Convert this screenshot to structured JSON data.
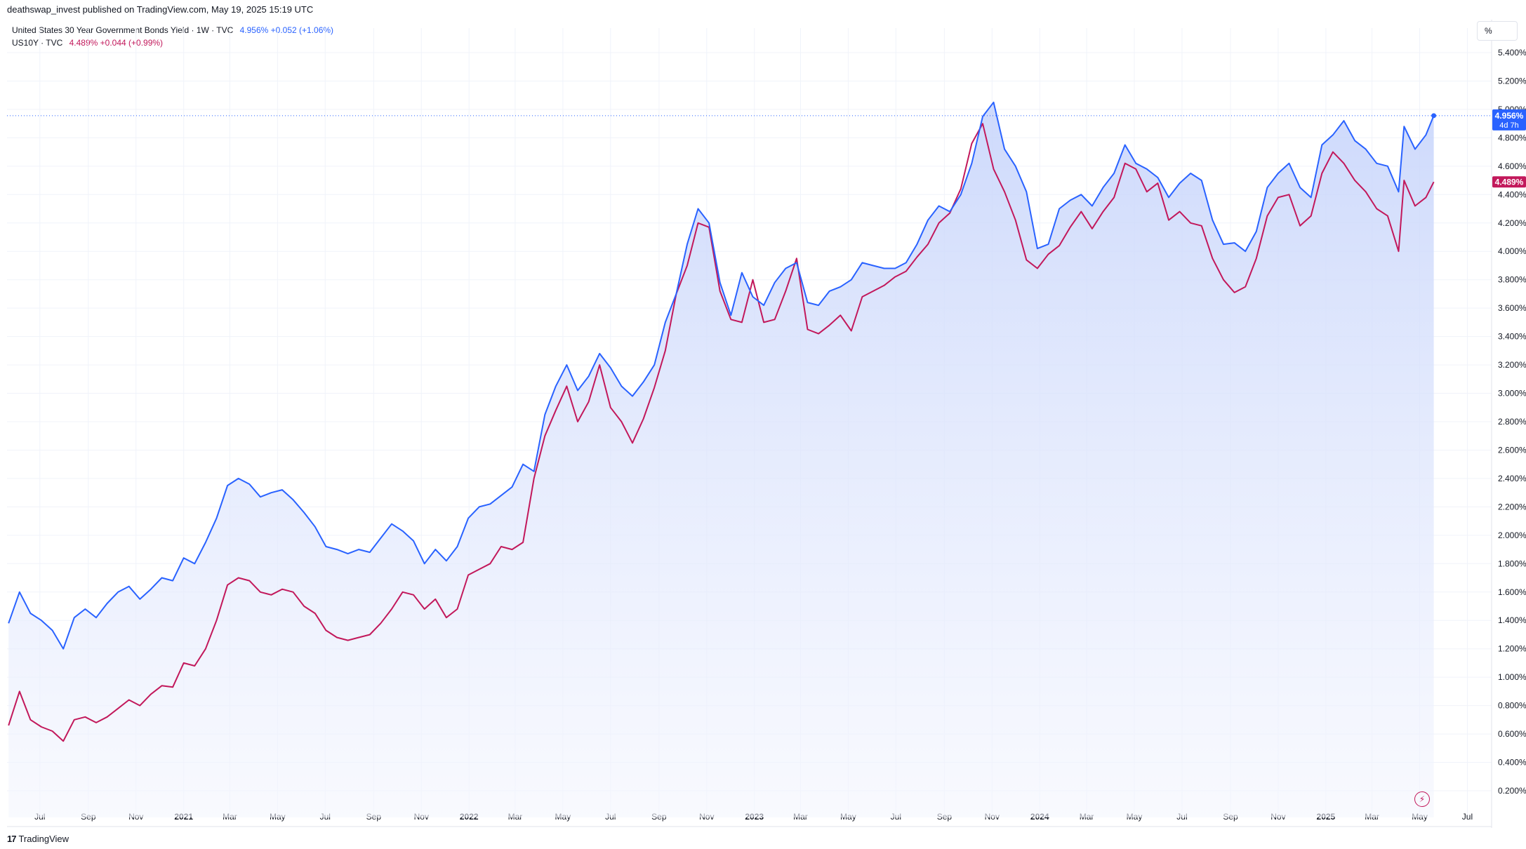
{
  "header": {
    "published": "deathswap_invest published on TradingView.com, May 19, 2025 15:19 UTC"
  },
  "legend": {
    "series1_name": "United States 30 Year Government Bonds Yield · 1W · TVC",
    "series1_values": "4.956%  +0.052 (+1.06%)",
    "series2_name": "US10Y · TVC",
    "series2_values": "4.489%  +0.044 (+0.99%)"
  },
  "scale_button": "%",
  "footer": {
    "brand": "TradingView",
    "logo": "tradingview-logo-icon"
  },
  "colors": {
    "us30": "#2962ff",
    "us10": "#c2185b",
    "grid": "#f0f3fa"
  },
  "chart_data": {
    "type": "line",
    "x_ticks": [
      "Jul",
      "Sep",
      "Nov",
      "2021",
      "Mar",
      "May",
      "Jul",
      "Sep",
      "Nov",
      "2022",
      "Mar",
      "May",
      "Jul",
      "Sep",
      "Nov",
      "2023",
      "Mar",
      "May",
      "Jul",
      "Sep",
      "Nov",
      "2024",
      "Mar",
      "May",
      "Jul",
      "Sep",
      "Nov",
      "2025",
      "Mar",
      "May",
      "Jul"
    ],
    "y_ticks": [
      "5.400%",
      "5.200%",
      "5.000%",
      "4.800%",
      "4.600%",
      "4.400%",
      "4.200%",
      "4.000%",
      "3.800%",
      "3.600%",
      "3.400%",
      "3.200%",
      "3.000%",
      "2.800%",
      "2.600%",
      "2.400%",
      "2.200%",
      "2.000%",
      "1.800%",
      "1.600%",
      "1.400%",
      "1.200%",
      "1.000%",
      "0.800%",
      "0.600%",
      "0.400%",
      "0.200%"
    ],
    "ylim": [
      0.1,
      5.55
    ],
    "x": [
      "2020-05-22",
      "2020-06-05",
      "2020-06-19",
      "2020-07-03",
      "2020-07-17",
      "2020-07-31",
      "2020-08-14",
      "2020-08-28",
      "2020-09-11",
      "2020-09-25",
      "2020-10-09",
      "2020-10-23",
      "2020-11-06",
      "2020-11-20",
      "2020-12-04",
      "2020-12-18",
      "2021-01-01",
      "2021-01-15",
      "2021-01-29",
      "2021-02-12",
      "2021-02-26",
      "2021-03-12",
      "2021-03-26",
      "2021-04-09",
      "2021-04-23",
      "2021-05-07",
      "2021-05-21",
      "2021-06-04",
      "2021-06-18",
      "2021-07-02",
      "2021-07-16",
      "2021-07-30",
      "2021-08-13",
      "2021-08-27",
      "2021-09-10",
      "2021-09-24",
      "2021-10-08",
      "2021-10-22",
      "2021-11-05",
      "2021-11-19",
      "2021-12-03",
      "2021-12-17",
      "2021-12-31",
      "2022-01-14",
      "2022-01-28",
      "2022-02-11",
      "2022-02-25",
      "2022-03-11",
      "2022-03-25",
      "2022-04-08",
      "2022-04-22",
      "2022-05-06",
      "2022-05-20",
      "2022-06-03",
      "2022-06-17",
      "2022-07-01",
      "2022-07-15",
      "2022-07-29",
      "2022-08-12",
      "2022-08-26",
      "2022-09-09",
      "2022-09-23",
      "2022-10-07",
      "2022-10-21",
      "2022-11-04",
      "2022-11-18",
      "2022-12-02",
      "2022-12-16",
      "2022-12-30",
      "2023-01-13",
      "2023-01-27",
      "2023-02-10",
      "2023-02-24",
      "2023-03-10",
      "2023-03-24",
      "2023-04-07",
      "2023-04-21",
      "2023-05-05",
      "2023-05-19",
      "2023-06-02",
      "2023-06-16",
      "2023-06-30",
      "2023-07-14",
      "2023-07-28",
      "2023-08-11",
      "2023-08-25",
      "2023-09-08",
      "2023-09-22",
      "2023-10-06",
      "2023-10-20",
      "2023-11-03",
      "2023-11-17",
      "2023-12-01",
      "2023-12-15",
      "2023-12-29",
      "2024-01-12",
      "2024-01-26",
      "2024-02-09",
      "2024-02-23",
      "2024-03-08",
      "2024-03-22",
      "2024-04-05",
      "2024-04-19",
      "2024-05-03",
      "2024-05-17",
      "2024-05-31",
      "2024-06-14",
      "2024-06-28",
      "2024-07-12",
      "2024-07-26",
      "2024-08-09",
      "2024-08-23",
      "2024-09-06",
      "2024-09-20",
      "2024-10-04",
      "2024-10-18",
      "2024-11-01",
      "2024-11-15",
      "2024-11-29",
      "2024-12-13",
      "2024-12-27",
      "2025-01-10",
      "2025-01-24",
      "2025-02-07",
      "2025-02-21",
      "2025-03-07",
      "2025-03-21",
      "2025-04-04",
      "2025-04-11",
      "2025-04-25",
      "2025-05-09",
      "2025-05-19"
    ],
    "series": [
      {
        "name": "United States 30 Year Government Bonds Yield",
        "values": [
          1.38,
          1.6,
          1.45,
          1.4,
          1.33,
          1.2,
          1.42,
          1.48,
          1.42,
          1.52,
          1.6,
          1.64,
          1.55,
          1.62,
          1.7,
          1.68,
          1.84,
          1.8,
          1.95,
          2.12,
          2.35,
          2.4,
          2.36,
          2.27,
          2.3,
          2.32,
          2.25,
          2.16,
          2.06,
          1.92,
          1.9,
          1.87,
          1.9,
          1.88,
          1.98,
          2.08,
          2.03,
          1.96,
          1.8,
          1.9,
          1.82,
          1.92,
          2.12,
          2.2,
          2.22,
          2.28,
          2.34,
          2.5,
          2.45,
          2.85,
          3.05,
          3.2,
          3.02,
          3.12,
          3.28,
          3.18,
          3.05,
          2.98,
          3.08,
          3.2,
          3.5,
          3.7,
          4.05,
          4.3,
          4.2,
          3.78,
          3.55,
          3.85,
          3.68,
          3.62,
          3.78,
          3.88,
          3.92,
          3.64,
          3.62,
          3.72,
          3.75,
          3.8,
          3.92,
          3.9,
          3.88,
          3.88,
          3.92,
          4.05,
          4.22,
          4.32,
          4.28,
          4.4,
          4.62,
          4.95,
          5.05,
          4.72,
          4.6,
          4.42,
          4.02,
          4.05,
          4.3,
          4.36,
          4.4,
          4.32,
          4.45,
          4.55,
          4.75,
          4.62,
          4.58,
          4.52,
          4.38,
          4.48,
          4.55,
          4.5,
          4.22,
          4.05,
          4.06,
          4.0,
          4.14,
          4.45,
          4.55,
          4.62,
          4.45,
          4.38,
          4.75,
          4.82,
          4.92,
          4.78,
          4.72,
          4.62,
          4.6,
          4.42,
          4.88,
          4.72,
          4.82,
          4.956
        ]
      },
      {
        "name": "US10Y",
        "values": [
          0.66,
          0.9,
          0.7,
          0.65,
          0.62,
          0.55,
          0.7,
          0.72,
          0.68,
          0.72,
          0.78,
          0.84,
          0.8,
          0.88,
          0.94,
          0.93,
          1.1,
          1.08,
          1.2,
          1.4,
          1.65,
          1.7,
          1.68,
          1.6,
          1.58,
          1.62,
          1.6,
          1.5,
          1.45,
          1.33,
          1.28,
          1.26,
          1.28,
          1.3,
          1.38,
          1.48,
          1.6,
          1.58,
          1.48,
          1.55,
          1.42,
          1.48,
          1.72,
          1.76,
          1.8,
          1.92,
          1.9,
          1.95,
          2.4,
          2.7,
          2.88,
          3.05,
          2.8,
          2.94,
          3.2,
          2.9,
          2.8,
          2.65,
          2.82,
          3.04,
          3.3,
          3.7,
          3.9,
          4.2,
          4.17,
          3.72,
          3.52,
          3.5,
          3.8,
          3.5,
          3.52,
          3.72,
          3.95,
          3.45,
          3.42,
          3.48,
          3.55,
          3.44,
          3.68,
          3.72,
          3.76,
          3.82,
          3.86,
          3.96,
          4.05,
          4.2,
          4.27,
          4.44,
          4.76,
          4.9,
          4.58,
          4.42,
          4.22,
          3.94,
          3.88,
          3.98,
          4.04,
          4.17,
          4.28,
          4.16,
          4.28,
          4.38,
          4.62,
          4.58,
          4.42,
          4.48,
          4.22,
          4.28,
          4.2,
          4.18,
          3.95,
          3.8,
          3.71,
          3.75,
          3.95,
          4.25,
          4.38,
          4.4,
          4.18,
          4.25,
          4.55,
          4.7,
          4.62,
          4.5,
          4.42,
          4.3,
          4.25,
          4.0,
          4.5,
          4.32,
          4.38,
          4.489
        ]
      }
    ],
    "last_labels": {
      "us30": "4.956%",
      "us30_countdown": "4d 7h",
      "us10": "4.489%"
    }
  }
}
